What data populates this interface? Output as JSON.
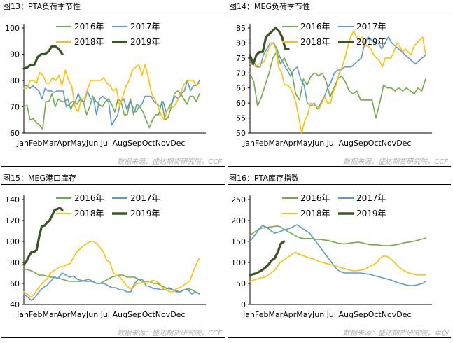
{
  "colors": {
    "s2016": "#70ad47",
    "s2017": "#5b9bd5",
    "s2018": "#ffc000",
    "s2019": "#375623",
    "axis": "#000000",
    "source": "#b0b0b0"
  },
  "panels": [
    {
      "title": "图13：PTA负荷季节性",
      "source": "数据来源：盛达期货研究院，CCF"
    },
    {
      "title": "图14：MEG负荷季节性",
      "source": "数据来源：盛达期货研究院，CCF"
    },
    {
      "title": "图15：MEG港口库存",
      "source": "数据来源：盛达期货研究院，CCF"
    },
    {
      "title": "图16：PTA库存指数",
      "source": "数据来源：盛达期货研究院，卓创"
    }
  ],
  "chart_data": [
    {
      "type": "line",
      "title": "图13：PTA负荷季节性",
      "x_ticks": [
        "Jan",
        "Feb",
        "Mar",
        "Apr",
        "May",
        "Jun",
        "Jul",
        "Aug",
        "Sep",
        "Oct",
        "Nov",
        "Dec"
      ],
      "ylim": [
        60,
        100
      ],
      "yticks": [
        60,
        70,
        80,
        90,
        100
      ],
      "legend": "top",
      "series": [
        {
          "name": "2016年",
          "values": [
            70,
            70.5,
            65,
            65.5,
            64,
            63,
            61.5,
            72,
            72,
            75,
            70,
            73,
            72,
            72,
            73,
            69,
            72,
            71,
            73,
            72,
            67,
            70,
            74,
            72,
            71,
            70,
            72,
            73,
            71,
            68,
            73,
            72,
            67,
            67,
            73,
            67,
            71,
            70,
            68,
            65,
            62,
            65,
            67,
            67,
            72,
            65,
            66,
            70,
            75,
            76,
            75,
            73,
            71,
            74,
            74,
            72,
            75
          ]
        },
        {
          "name": "2017年",
          "values": [
            78,
            78,
            77,
            78,
            77,
            76,
            73,
            77,
            76,
            76,
            75.5,
            76,
            76,
            76,
            70,
            71,
            72,
            72,
            75,
            72,
            72,
            76,
            73,
            73,
            67,
            73,
            74,
            73,
            72,
            63,
            65,
            67,
            72,
            73,
            69,
            72,
            70,
            68,
            70,
            71,
            74,
            74,
            74,
            72,
            71,
            70,
            72,
            68,
            70,
            72,
            74,
            73,
            75,
            76,
            80,
            76,
            78,
            78,
            80
          ]
        },
        {
          "name": "2018年",
          "values": [
            77,
            77,
            80,
            80,
            79,
            83,
            82,
            79,
            79,
            81,
            80,
            82,
            78,
            84,
            80,
            78,
            70,
            68,
            73,
            73,
            77,
            80,
            80,
            80,
            80,
            81,
            79,
            78,
            76,
            77,
            70,
            74,
            78,
            80,
            84,
            85,
            86,
            82,
            86,
            81,
            75,
            73,
            70,
            67,
            65,
            69,
            70,
            70,
            72,
            75,
            78,
            80,
            80,
            80,
            78,
            79
          ]
        },
        {
          "name": "2019年",
          "values": [
            84.5,
            85,
            86,
            86,
            89,
            90,
            90,
            91,
            93,
            93,
            92,
            90
          ]
        }
      ]
    },
    {
      "type": "line",
      "title": "图14：MEG负荷季节性",
      "x_ticks": [
        "Jan",
        "Feb",
        "Mar",
        "Apr",
        "May",
        "Jun",
        "Jul",
        "Aug",
        "Sep",
        "Oct",
        "Nov",
        "Dec"
      ],
      "ylim": [
        50,
        85
      ],
      "yticks": [
        50,
        55,
        60,
        65,
        70,
        75,
        80,
        85
      ],
      "legend": "top",
      "series": [
        {
          "name": "2016年",
          "values": [
            70,
            67,
            59,
            62,
            66,
            70,
            75,
            77,
            73,
            75,
            72,
            70,
            63,
            61,
            68,
            66,
            69,
            70,
            69,
            70,
            67,
            62,
            65,
            68,
            69,
            67,
            64,
            63,
            64,
            61,
            61,
            61,
            61,
            55,
            60,
            66,
            65,
            65,
            64,
            65,
            64,
            65,
            64,
            63,
            65,
            64,
            68
          ]
        },
        {
          "name": "2017年",
          "values": [
            72,
            74,
            72,
            72,
            76,
            78,
            80,
            80,
            78,
            75,
            73,
            71,
            69,
            71,
            72,
            68,
            66,
            60,
            59,
            60,
            58,
            60,
            62,
            65,
            67,
            70,
            71,
            71,
            72,
            72,
            72,
            73,
            74,
            75,
            80,
            82,
            81,
            80,
            80,
            78,
            80,
            82,
            80,
            79,
            78,
            77,
            76,
            75,
            74,
            73,
            74,
            75,
            76
          ]
        },
        {
          "name": "2018年",
          "values": [
            73,
            73,
            72,
            73,
            73,
            74,
            77,
            79,
            80,
            78,
            72,
            70,
            66,
            66,
            65,
            63,
            60,
            55,
            50,
            54,
            56,
            60,
            59,
            59,
            58,
            60,
            62,
            60,
            60,
            64,
            66,
            70,
            72,
            75,
            79,
            82,
            84,
            82,
            81,
            82,
            79,
            79,
            78,
            76,
            75,
            74,
            72,
            75,
            75,
            75,
            77,
            80,
            79,
            77,
            78,
            77,
            76,
            79,
            80,
            81,
            82,
            76
          ]
        },
        {
          "name": "2019年",
          "values": [
            76,
            73,
            76,
            77,
            77,
            82,
            83,
            84,
            85,
            84,
            82,
            78,
            78
          ]
        }
      ]
    },
    {
      "type": "line",
      "title": "图15：MEG港口库存",
      "x_ticks": [
        "Jan",
        "Feb",
        "Mar",
        "Apr",
        "May",
        "Jun",
        "Jul",
        "Aug",
        "Sep",
        "Oct",
        "Nov",
        "Dec"
      ],
      "ylim": [
        40,
        140
      ],
      "yticks": [
        40,
        60,
        80,
        100,
        120,
        140
      ],
      "legend": "top",
      "series": [
        {
          "name": "2016年",
          "values": [
            74,
            73,
            72,
            70,
            68,
            68,
            67,
            66,
            66,
            65,
            64,
            63,
            62,
            62,
            62,
            62,
            63,
            64,
            62,
            60,
            60,
            62,
            64,
            66,
            67,
            68,
            68,
            66,
            66,
            66,
            64,
            62,
            62,
            62,
            60,
            60,
            58,
            56,
            55,
            54,
            53,
            52,
            54,
            55,
            54,
            52,
            50
          ]
        },
        {
          "name": "2017年",
          "values": [
            50,
            47,
            44,
            47,
            52,
            56,
            58,
            62,
            66,
            65,
            70,
            68,
            66,
            67,
            64,
            63,
            62,
            62,
            62,
            60,
            60,
            60,
            58,
            56,
            56,
            54,
            54,
            52,
            52,
            60,
            64,
            64,
            58,
            57,
            55,
            55,
            54,
            54,
            56,
            54,
            52,
            52,
            54,
            54,
            50,
            52,
            50
          ]
        },
        {
          "name": "2018年",
          "values": [
            52,
            50,
            47,
            49,
            54,
            58,
            62,
            64,
            70,
            72,
            74,
            76,
            76,
            78,
            79,
            85,
            90,
            93,
            96,
            98,
            100,
            100,
            98,
            94,
            90,
            82,
            80,
            70,
            68,
            66,
            62,
            58,
            55,
            56,
            60,
            60,
            61,
            60,
            62,
            63,
            62,
            60,
            55,
            54,
            52,
            52,
            55,
            56,
            58,
            60,
            62,
            70,
            78,
            84
          ]
        },
        {
          "name": "2019年",
          "values": [
            78,
            81,
            86,
            90,
            90,
            92,
            105,
            115,
            115,
            118,
            120,
            125,
            130,
            131,
            132,
            130
          ]
        }
      ]
    },
    {
      "type": "line",
      "title": "图16：PTA库存指数",
      "x_ticks": [
        "Jan",
        "Feb",
        "Mar",
        "Apr",
        "May",
        "Jun",
        "Jul",
        "Aug",
        "Sep",
        "Oct",
        "Nov",
        "Dec"
      ],
      "ylim": [
        0,
        250
      ],
      "yticks": [
        0,
        50,
        100,
        150,
        200,
        250
      ],
      "legend": "top",
      "series": [
        {
          "name": "2016年",
          "values": [
            165,
            170,
            175,
            180,
            182,
            183,
            184,
            185,
            186,
            187,
            185,
            180,
            176,
            172,
            168,
            164,
            160,
            158,
            157,
            157,
            157,
            156,
            155,
            155,
            154,
            153,
            152,
            150,
            148,
            146,
            145,
            144,
            145,
            146,
            147,
            148,
            148,
            147,
            145,
            143,
            142,
            142,
            142,
            141,
            140,
            140,
            140,
            141,
            142,
            143,
            145,
            147,
            148,
            149,
            150,
            152,
            154,
            156,
            158
          ]
        },
        {
          "name": "2017年",
          "values": [
            150,
            160,
            170,
            180,
            188,
            185,
            180,
            174,
            170,
            172,
            175,
            178,
            180,
            182,
            186,
            190,
            185,
            180,
            175,
            170,
            160,
            150,
            140,
            130,
            120,
            110,
            100,
            90,
            82,
            78,
            75,
            75,
            75,
            75,
            75,
            75,
            74,
            73,
            72,
            70,
            68,
            66,
            64,
            62,
            60,
            58,
            55,
            52,
            50,
            48,
            46,
            45,
            45,
            46,
            48,
            50,
            55
          ]
        },
        {
          "name": "2018年",
          "values": [
            55,
            57,
            60,
            62,
            64,
            65,
            70,
            75,
            80,
            90,
            100,
            105,
            110,
            115,
            120,
            125,
            120,
            118,
            115,
            112,
            110,
            108,
            105,
            102,
            100,
            98,
            96,
            94,
            92,
            90,
            88,
            86,
            84,
            82,
            80,
            80,
            81,
            82,
            84,
            88,
            92,
            95,
            100,
            110,
            115,
            115,
            112,
            105,
            98,
            90,
            85,
            80,
            76,
            74,
            72,
            71,
            70,
            70,
            71
          ]
        },
        {
          "name": "2019年",
          "values": [
            70,
            72,
            74,
            78,
            82,
            88,
            95,
            105,
            110,
            125,
            145,
            150
          ]
        }
      ]
    }
  ]
}
